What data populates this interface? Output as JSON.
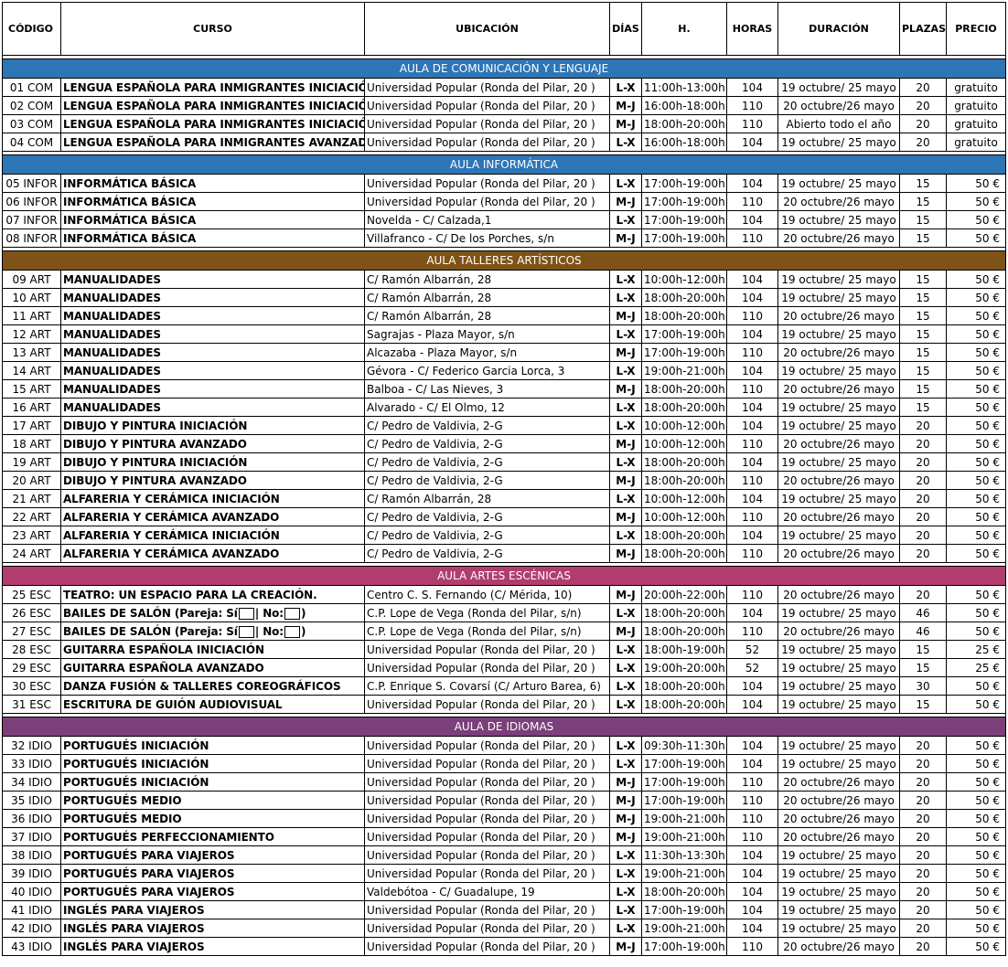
{
  "columns": [
    "CÓDIGO",
    "CURSO",
    "UBICACIÓN",
    "DÍAS",
    "H.",
    "HORAS",
    "DURACIÓN",
    "PLAZAS",
    "PRECIO"
  ],
  "colors": {
    "aula_comunicacion": "#2e75b6",
    "aula_informatica": "#2e75b6",
    "aula_talleres": "#7f5317",
    "aula_escenicas": "#b03d6e",
    "aula_idiomas": "#7b3f7a"
  },
  "sections": [
    {
      "title": "AULA DE COMUNICACIÓN Y LENGUAJE",
      "color": "#2e75b6",
      "rows": [
        [
          "01 COM",
          "LENGUA ESPAÑOLA PARA INMIGRANTES INICIACIÓN",
          "Universidad Popular (Ronda del Pilar, 20 )",
          "L-X",
          "11:00h-13:00h",
          "104",
          "19 octubre/ 25 mayo",
          "20",
          "gratuito"
        ],
        [
          "02 COM",
          "LENGUA ESPAÑOLA PARA INMIGRANTES INICIACIÓN",
          "Universidad Popular (Ronda del Pilar, 20 )",
          "M-J",
          "16:00h-18:00h",
          "110",
          "20 octubre/26 mayo",
          "20",
          "gratuito"
        ],
        [
          "03 COM",
          "LENGUA ESPAÑOLA PARA INMIGRANTES INICIACIÓN",
          "Universidad Popular (Ronda del Pilar, 20 )",
          "M-J",
          "18:00h-20:00h",
          "110",
          "Abierto todo el año",
          "20",
          "gratuito"
        ],
        [
          "04 COM",
          "LENGUA ESPAÑOLA PARA INMIGRANTES AVANZADO",
          "Universidad Popular (Ronda del Pilar, 20 )",
          "L-X",
          "16:00h-18:00h",
          "104",
          "19 octubre/ 25 mayo",
          "20",
          "gratuito"
        ]
      ]
    },
    {
      "title": "AULA INFORMÁTICA",
      "color": "#2e75b6",
      "rows": [
        [
          "05 INFOR",
          "INFORMÁTICA BÁSICA",
          "Universidad Popular (Ronda del Pilar, 20 )",
          "L-X",
          "17:00h-19:00h",
          "104",
          "19 octubre/ 25 mayo",
          "15",
          "50 €"
        ],
        [
          "06 INFOR",
          "INFORMÁTICA BÁSICA",
          "Universidad Popular (Ronda del Pilar, 20 )",
          "M-J",
          "17:00h-19:00h",
          "110",
          "20 octubre/26 mayo",
          "15",
          "50 €"
        ],
        [
          "07 INFOR",
          "INFORMÁTICA BÁSICA",
          "Novelda - C/ Calzada,1",
          "L-X",
          "17:00h-19:00h",
          "104",
          "19 octubre/ 25 mayo",
          "15",
          "50 €"
        ],
        [
          "08 INFOR",
          "INFORMÁTICA BÁSICA",
          "Villafranco - C/ De los Porches, s/n",
          "M-J",
          "17:00h-19:00h",
          "110",
          "20 octubre/26 mayo",
          "15",
          "50 €"
        ]
      ]
    },
    {
      "title": "AULA TALLERES  ARTÍSTICOS",
      "color": "#7f5317",
      "rows": [
        [
          "09 ART",
          "MANUALIDADES",
          "C/ Ramón Albarrán, 28",
          "L-X",
          "10:00h-12:00h",
          "104",
          "19 octubre/ 25 mayo",
          "15",
          "50 €"
        ],
        [
          "10 ART",
          "MANUALIDADES",
          "C/ Ramón Albarrán, 28",
          "L-X",
          "18:00h-20:00h",
          "104",
          "19 octubre/ 25 mayo",
          "15",
          "50 €"
        ],
        [
          "11 ART",
          "MANUALIDADES",
          "C/ Ramón Albarrán, 28",
          "M-J",
          "18:00h-20:00h",
          "110",
          "20 octubre/26 mayo",
          "15",
          "50 €"
        ],
        [
          "12 ART",
          "MANUALIDADES",
          "Sagrajas - Plaza Mayor, s/n",
          "L-X",
          "17:00h-19:00h",
          "104",
          "19 octubre/ 25 mayo",
          "15",
          "50 €"
        ],
        [
          "13 ART",
          "MANUALIDADES",
          "Alcazaba - Plaza Mayor, s/n",
          "M-J",
          "17:00h-19:00h",
          "110",
          "20 octubre/26 mayo",
          "15",
          "50 €"
        ],
        [
          "14 ART",
          "MANUALIDADES",
          "Gévora - C/ Federico Garcia Lorca, 3",
          "L-X",
          "19:00h-21:00h",
          "104",
          "19 octubre/ 25 mayo",
          "15",
          "50 €"
        ],
        [
          "15 ART",
          "MANUALIDADES",
          "Balboa -  C/ Las Nieves, 3",
          "M-J",
          "18:00h-20:00h",
          "110",
          "20 octubre/26 mayo",
          "15",
          "50 €"
        ],
        [
          "16 ART",
          "MANUALIDADES",
          "Alvarado - C/ El Olmo, 12",
          "L-X",
          "18:00h-20:00h",
          "104",
          "19 octubre/ 25 mayo",
          "15",
          "50 €"
        ],
        [
          "17 ART",
          "DIBUJO Y PINTURA INICIACIÓN",
          "C/ Pedro de Valdivia, 2-G",
          "L-X",
          "10:00h-12:00h",
          "104",
          "19 octubre/ 25 mayo",
          "20",
          "50 €"
        ],
        [
          "18 ART",
          "DIBUJO Y PINTURA AVANZADO",
          "C/ Pedro de Valdivia, 2-G",
          "M-J",
          "10:00h-12:00h",
          "110",
          "20 octubre/26 mayo",
          "20",
          "50 €"
        ],
        [
          "19 ART",
          "DIBUJO Y PINTURA INICIACIÓN",
          "C/ Pedro de Valdivia, 2-G",
          "L-X",
          "18:00h-20:00h",
          "104",
          "19 octubre/ 25 mayo",
          "20",
          "50 €"
        ],
        [
          "20 ART",
          "DIBUJO Y PINTURA AVANZADO",
          "C/ Pedro de Valdivia, 2-G",
          "M-J",
          "18:00h-20:00h",
          "110",
          "20 octubre/26 mayo",
          "20",
          "50 €"
        ],
        [
          "21 ART",
          "ALFARERIA Y CERÁMICA INICIACIÓN",
          "C/ Ramón Albarrán, 28",
          "L-X",
          "10:00h-12:00h",
          "104",
          "19 octubre/ 25 mayo",
          "20",
          "50 €"
        ],
        [
          "22 ART",
          "ALFARERIA Y CERÁMICA AVANZADO",
          "C/ Pedro de Valdivia, 2-G",
          "M-J",
          "10:00h-12:00h",
          "110",
          "20 octubre/26 mayo",
          "20",
          "50 €"
        ],
        [
          "23 ART",
          "ALFARERIA Y CERÁMICA INICIACIÓN",
          "C/ Pedro de Valdivia, 2-G",
          "L-X",
          "18:00h-20:00h",
          "104",
          "19 octubre/ 25 mayo",
          "20",
          "50 €"
        ],
        [
          "24 ART",
          "ALFARERIA Y CERÁMICA AVANZADO",
          "C/ Pedro de Valdivia, 2-G",
          "M-J",
          "18:00h-20:00h",
          "110",
          "20 octubre/26 mayo",
          "20",
          "50 €"
        ]
      ]
    },
    {
      "title": "AULA ARTES ESCÉNICAS",
      "color": "#b03d6e",
      "rows": [
        [
          "25 ESC",
          "TEATRO: UN ESPACIO PARA LA CREACIÓN.",
          "Centro C. S. Fernando (C/ Mérida, 10)",
          "M-J",
          "20:00h-22:00h",
          "110",
          "20 octubre/26 mayo",
          "20",
          "50 €"
        ],
        [
          "26 ESC",
          "BAILES DE SALÓN (Pareja: Sí|No:)",
          "C.P. Lope de Vega (Ronda del Pilar, s/n)",
          "L-X",
          "18:00h-20:00h",
          "104",
          "19 octubre/ 25 mayo",
          "46",
          "50 €"
        ],
        [
          "27 ESC",
          "BAILES DE SALÓN (Pareja: Sí|No:)",
          "C.P. Lope de Vega (Ronda del Pilar, s/n)",
          "M-J",
          "18:00h-20:00h",
          "110",
          "20 octubre/26 mayo",
          "46",
          "50 €"
        ],
        [
          "28 ESC",
          "GUITARRA ESPAÑOLA INICIACIÓN",
          "Universidad Popular (Ronda del Pilar, 20 )",
          "L-X",
          "18:00h-19:00h",
          "52",
          "19 octubre/ 25 mayo",
          "15",
          "25 €"
        ],
        [
          "29 ESC",
          "GUITARRA ESPAÑOLA AVANZADO",
          "Universidad Popular (Ronda del Pilar, 20 )",
          "L-X",
          "19:00h-20:00h",
          "52",
          "19 octubre/ 25 mayo",
          "15",
          "25 €"
        ],
        [
          "30 ESC",
          "DANZA FUSIÓN & TALLERES COREOGRÁFICOS",
          "C.P. Enrique S. Covarsí (C/ Arturo Barea, 6)",
          "L-X",
          "18:00h-20:00h",
          "104",
          "19 octubre/ 25 mayo",
          "30",
          "50 €"
        ],
        [
          "31 ESC",
          "ESCRITURA DE GUIÓN AUDIOVISUAL",
          "Universidad Popular (Ronda del Pilar, 20 )",
          "L-X",
          "18:00h-20:00h",
          "104",
          "19 octubre/ 25 mayo",
          "15",
          "50 €"
        ]
      ]
    },
    {
      "title": "AULA DE IDIOMAS",
      "color": "#7b3f7a",
      "rows": [
        [
          "32 IDIO",
          "PORTUGUÉS INICIACIÓN",
          "Universidad Popular (Ronda del Pilar, 20 )",
          "L-X",
          "09:30h-11:30h",
          "104",
          "19 octubre/ 25 mayo",
          "20",
          "50 €"
        ],
        [
          "33 IDIO",
          "PORTUGUÉS INICIACIÓN",
          "Universidad Popular (Ronda del Pilar, 20 )",
          "L-X",
          "17:00h-19:00h",
          "104",
          "19 octubre/ 25 mayo",
          "20",
          "50 €"
        ],
        [
          "34 IDIO",
          "PORTUGUÉS INICIACIÓN",
          "Universidad Popular (Ronda del Pilar, 20 )",
          "M-J",
          "17:00h-19:00h",
          "110",
          "20 octubre/26 mayo",
          "20",
          "50 €"
        ],
        [
          "35 IDIO",
          "PORTUGUÉS MEDIO",
          "Universidad Popular (Ronda del Pilar, 20 )",
          "M-J",
          "17:00h-19:00h",
          "110",
          "20 octubre/26 mayo",
          "20",
          "50 €"
        ],
        [
          "36 IDIO",
          "PORTUGUÉS MEDIO",
          "Universidad Popular (Ronda del Pilar, 20 )",
          "M-J",
          "19:00h-21:00h",
          "110",
          "20 octubre/26 mayo",
          "20",
          "50 €"
        ],
        [
          "37 IDIO",
          "PORTUGUÉS PERFECCIONAMIENTO",
          "Universidad Popular (Ronda del Pilar, 20 )",
          "M-J",
          "19:00h-21:00h",
          "110",
          "20 octubre/26 mayo",
          "20",
          "50 €"
        ],
        [
          "38 IDIO",
          "PORTUGUÉS  PARA VIAJEROS",
          "Universidad Popular (Ronda del Pilar, 20 )",
          "L-X",
          "11:30h-13:30h",
          "104",
          "19  octubre/ 25 mayo",
          "20",
          "50 €"
        ],
        [
          "39 IDIO",
          "PORTUGUÉS  PARA VIAJEROS",
          "Universidad Popular (Ronda del Pilar, 20 )",
          "L-X",
          "19:00h-21:00h",
          "104",
          "19 octubre/ 25 mayo",
          "20",
          "50 €"
        ],
        [
          "40 IDIO",
          "PORTUGUÉS  PARA VIAJEROS",
          "Valdebótoa - C/ Guadalupe, 19",
          "L-X",
          "18:00h-20:00h",
          "104",
          "19 octubre/ 25 mayo",
          "20",
          "50 €"
        ],
        [
          "41 IDIO",
          "INGLÉS  PARA VIAJEROS",
          "Universidad Popular (Ronda del Pilar, 20 )",
          "L-X",
          "17:00h-19:00h",
          "104",
          "19 octubre/ 25 mayo",
          "20",
          "50 €"
        ],
        [
          "42 IDIO",
          "INGLÉS  PARA VIAJEROS",
          "Universidad Popular (Ronda del Pilar, 20 )",
          "L-X",
          "19:00h-21:00h",
          "104",
          "19 octubre/ 25 mayo",
          "20",
          "50 €"
        ],
        [
          "43 IDIO",
          "INGLÉS  PARA VIAJEROS",
          "Universidad Popular (Ronda del Pilar, 20 )",
          "M-J",
          "17:00h-19:00h",
          "110",
          "20 octubre/26 mayo",
          "20",
          "50 €"
        ]
      ]
    }
  ]
}
